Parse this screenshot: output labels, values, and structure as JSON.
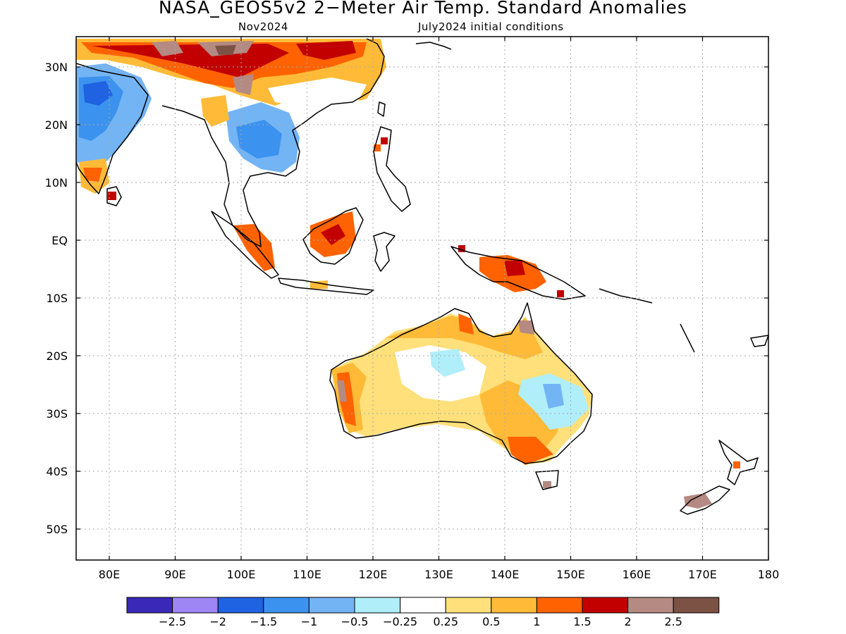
{
  "header": {
    "title": "NASA_GEOS5v2 2−Meter Air Temp. Standard Anomalies",
    "subtitle_left": "Nov2024",
    "subtitle_right": "July2024 initial conditions"
  },
  "axes": {
    "lon_labels": [
      "80E",
      "90E",
      "100E",
      "110E",
      "120E",
      "130E",
      "140E",
      "150E",
      "160E",
      "170E",
      "180"
    ],
    "lat_labels": [
      "30N",
      "20N",
      "10N",
      "EQ",
      "10S",
      "20S",
      "30S",
      "40S",
      "50S"
    ]
  },
  "colorbar": {
    "colors": [
      "#3a28b8",
      "#9e86f4",
      "#1f62e2",
      "#3b92ef",
      "#73b4f4",
      "#b0eefa",
      "#ffffff",
      "#ffe07a",
      "#ffbb37",
      "#ff6200",
      "#c20000",
      "#b48a82",
      "#7b5244"
    ],
    "labels": [
      "−2.5",
      "−2",
      "−1.5",
      "−1",
      "−0.5",
      "−0.25",
      "0.25",
      "0.5",
      "1",
      "1.5",
      "2",
      "2.5"
    ]
  }
}
